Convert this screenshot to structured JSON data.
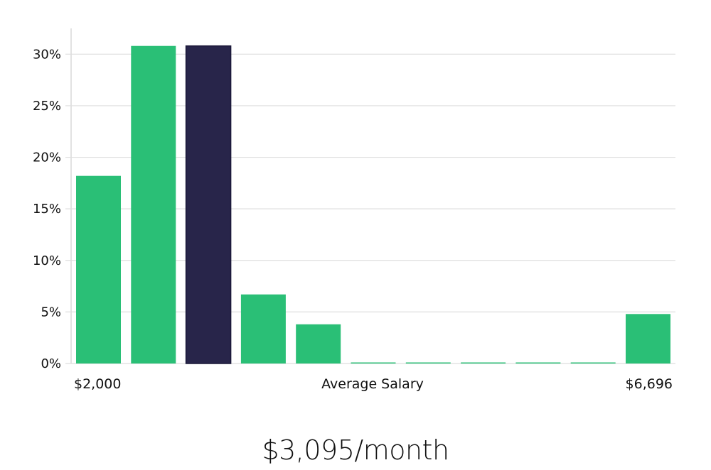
{
  "chart_data": {
    "type": "bar",
    "title": "",
    "xlabel": "Average Salary",
    "ylabel": "",
    "x_tick_labels": {
      "min": "$2,000",
      "max": "$6,696"
    },
    "y_ticks": [
      "0%",
      "5%",
      "10%",
      "15%",
      "20%",
      "25%",
      "30%"
    ],
    "ylim": [
      0,
      32.5
    ],
    "grid": true,
    "values": [
      18.2,
      30.8,
      30.8,
      6.7,
      3.8,
      0,
      0,
      0,
      0,
      0,
      4.8
    ],
    "highlight_index": 2,
    "colors": {
      "bar": "#2abf76",
      "highlight": "#28254a",
      "highlight_edge": "#1a1838"
    }
  },
  "caption": "$3,095/month"
}
